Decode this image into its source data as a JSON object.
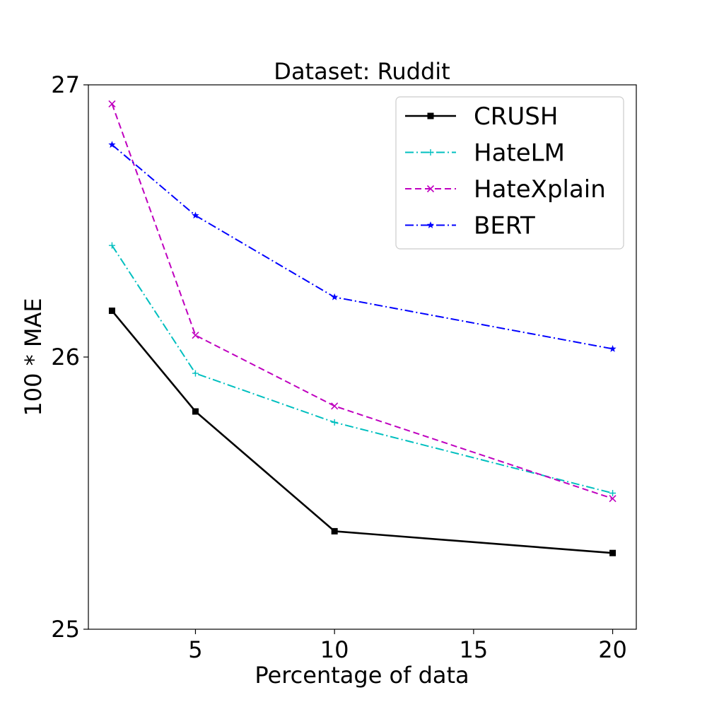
{
  "chart_data": {
    "type": "line",
    "title": "Dataset: Ruddit",
    "xlabel": "Percentage of data",
    "ylabel": "100 * MAE",
    "xlim": [
      1.15,
      20.85
    ],
    "ylim": [
      25,
      27
    ],
    "xticks": [
      5,
      10,
      15,
      20
    ],
    "yticks": [
      25,
      26,
      27
    ],
    "xtick_labels": [
      "5",
      "10",
      "15",
      "20"
    ],
    "ytick_labels": [
      "25",
      "26",
      "27"
    ],
    "grid": false,
    "legend_position": "top-right",
    "x": [
      2,
      5,
      10,
      20
    ],
    "series": [
      {
        "name": "CRUSH",
        "values": [
          26.17,
          25.8,
          25.36,
          25.28
        ],
        "color": "#000000",
        "marker": "square",
        "linestyle": "solid"
      },
      {
        "name": "HateLM",
        "values": [
          26.41,
          25.94,
          25.76,
          25.5
        ],
        "color": "#00bfbf",
        "marker": "plus",
        "linestyle": "dashdot"
      },
      {
        "name": "HateXplain",
        "values": [
          26.93,
          26.08,
          25.82,
          25.48
        ],
        "color": "#bf00bf",
        "marker": "x",
        "linestyle": "dashed"
      },
      {
        "name": "BERT",
        "values": [
          26.78,
          26.52,
          26.22,
          26.03
        ],
        "color": "#0000ff",
        "marker": "star",
        "linestyle": "dashdot"
      }
    ]
  }
}
